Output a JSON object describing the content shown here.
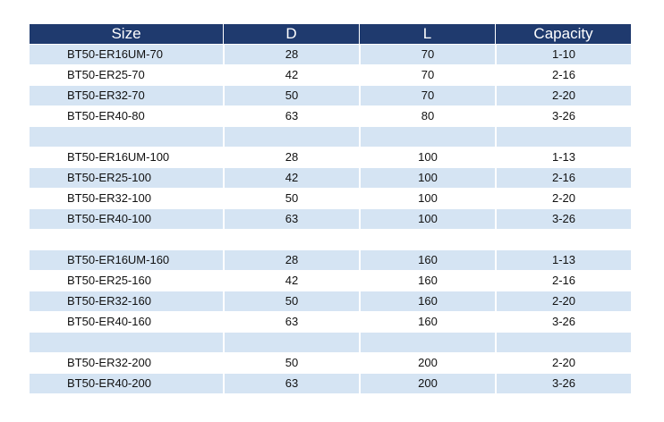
{
  "table": {
    "headers": [
      "Size",
      "D",
      "L",
      "Capacity"
    ],
    "rows": [
      {
        "size": "BT50-ER16UM-70",
        "d": "28",
        "l": "70",
        "capacity": "1-10",
        "shade": true
      },
      {
        "size": "BT50-ER25-70",
        "d": "42",
        "l": "70",
        "capacity": "2-16",
        "shade": false
      },
      {
        "size": "BT50-ER32-70",
        "d": "50",
        "l": "70",
        "capacity": "2-20",
        "shade": true
      },
      {
        "size": "BT50-ER40-80",
        "d": "63",
        "l": "80",
        "capacity": "3-26",
        "shade": false
      },
      {
        "size": "",
        "d": "",
        "l": "",
        "capacity": "",
        "shade": true
      },
      {
        "size": "BT50-ER16UM-100",
        "d": "28",
        "l": "100",
        "capacity": "1-13",
        "shade": false
      },
      {
        "size": "BT50-ER25-100",
        "d": "42",
        "l": "100",
        "capacity": "2-16",
        "shade": true
      },
      {
        "size": "BT50-ER32-100",
        "d": "50",
        "l": "100",
        "capacity": "2-20",
        "shade": false
      },
      {
        "size": "BT50-ER40-100",
        "d": "63",
        "l": "100",
        "capacity": "3-26",
        "shade": true
      },
      {
        "size": "",
        "d": "",
        "l": "",
        "capacity": "",
        "shade": false
      },
      {
        "size": "BT50-ER16UM-160",
        "d": "28",
        "l": "160",
        "capacity": "1-13",
        "shade": true
      },
      {
        "size": "BT50-ER25-160",
        "d": "42",
        "l": "160",
        "capacity": "2-16",
        "shade": false
      },
      {
        "size": "BT50-ER32-160",
        "d": "50",
        "l": "160",
        "capacity": "2-20",
        "shade": true
      },
      {
        "size": "BT50-ER40-160",
        "d": "63",
        "l": "160",
        "capacity": "3-26",
        "shade": false
      },
      {
        "size": "",
        "d": "",
        "l": "",
        "capacity": "",
        "shade": true
      },
      {
        "size": "BT50-ER32-200",
        "d": "50",
        "l": "200",
        "capacity": "2-20",
        "shade": false
      },
      {
        "size": "BT50-ER40-200",
        "d": "63",
        "l": "200",
        "capacity": "3-26",
        "shade": true
      }
    ]
  },
  "colors": {
    "header_bg": "#1f3a6e",
    "row_shade": "#d5e4f3"
  }
}
